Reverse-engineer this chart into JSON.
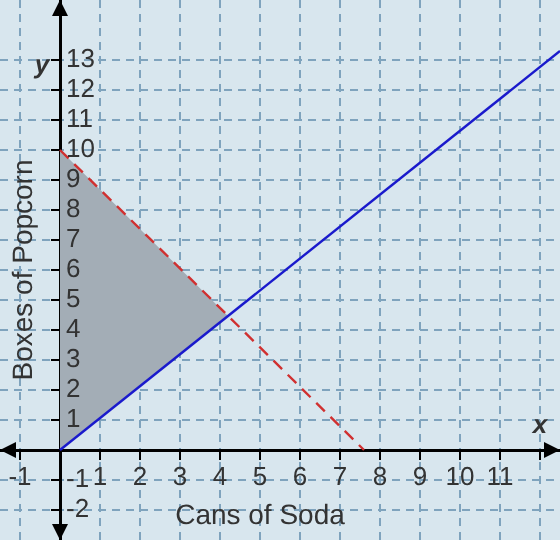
{
  "chart_data": {
    "type": "line",
    "xlabel": "Cans of Soda",
    "ylabel": "Boxes of Popcorn",
    "annotations": [
      "x",
      "y"
    ],
    "xlim": [
      -1.5,
      12.5
    ],
    "ylim": [
      -3,
      15
    ],
    "xticks": [
      -1,
      1,
      2,
      3,
      4,
      5,
      6,
      7,
      8,
      9,
      10,
      11,
      {
        "value": 12,
        "label": null
      }
    ],
    "yticks": [
      -2,
      -1,
      1,
      2,
      3,
      4,
      5,
      6,
      7,
      8,
      9,
      10,
      11,
      12,
      13
    ],
    "grid": true,
    "marker": "none",
    "series": [
      {
        "type": "area",
        "x": [
          0,
          4.2,
          0
        ],
        "values": [
          10,
          4.47,
          0
        ],
        "color": "#a3adb6"
      },
      {
        "type": "line",
        "x": [
          0,
          12.5
        ],
        "values": [
          0,
          13.3
        ],
        "color": "#1a1acc"
      },
      {
        "type": "line",
        "x": [
          0,
          7.6
        ],
        "values": [
          10,
          0
        ],
        "color": "#d03030",
        "line_style": "dashed"
      }
    ]
  }
}
